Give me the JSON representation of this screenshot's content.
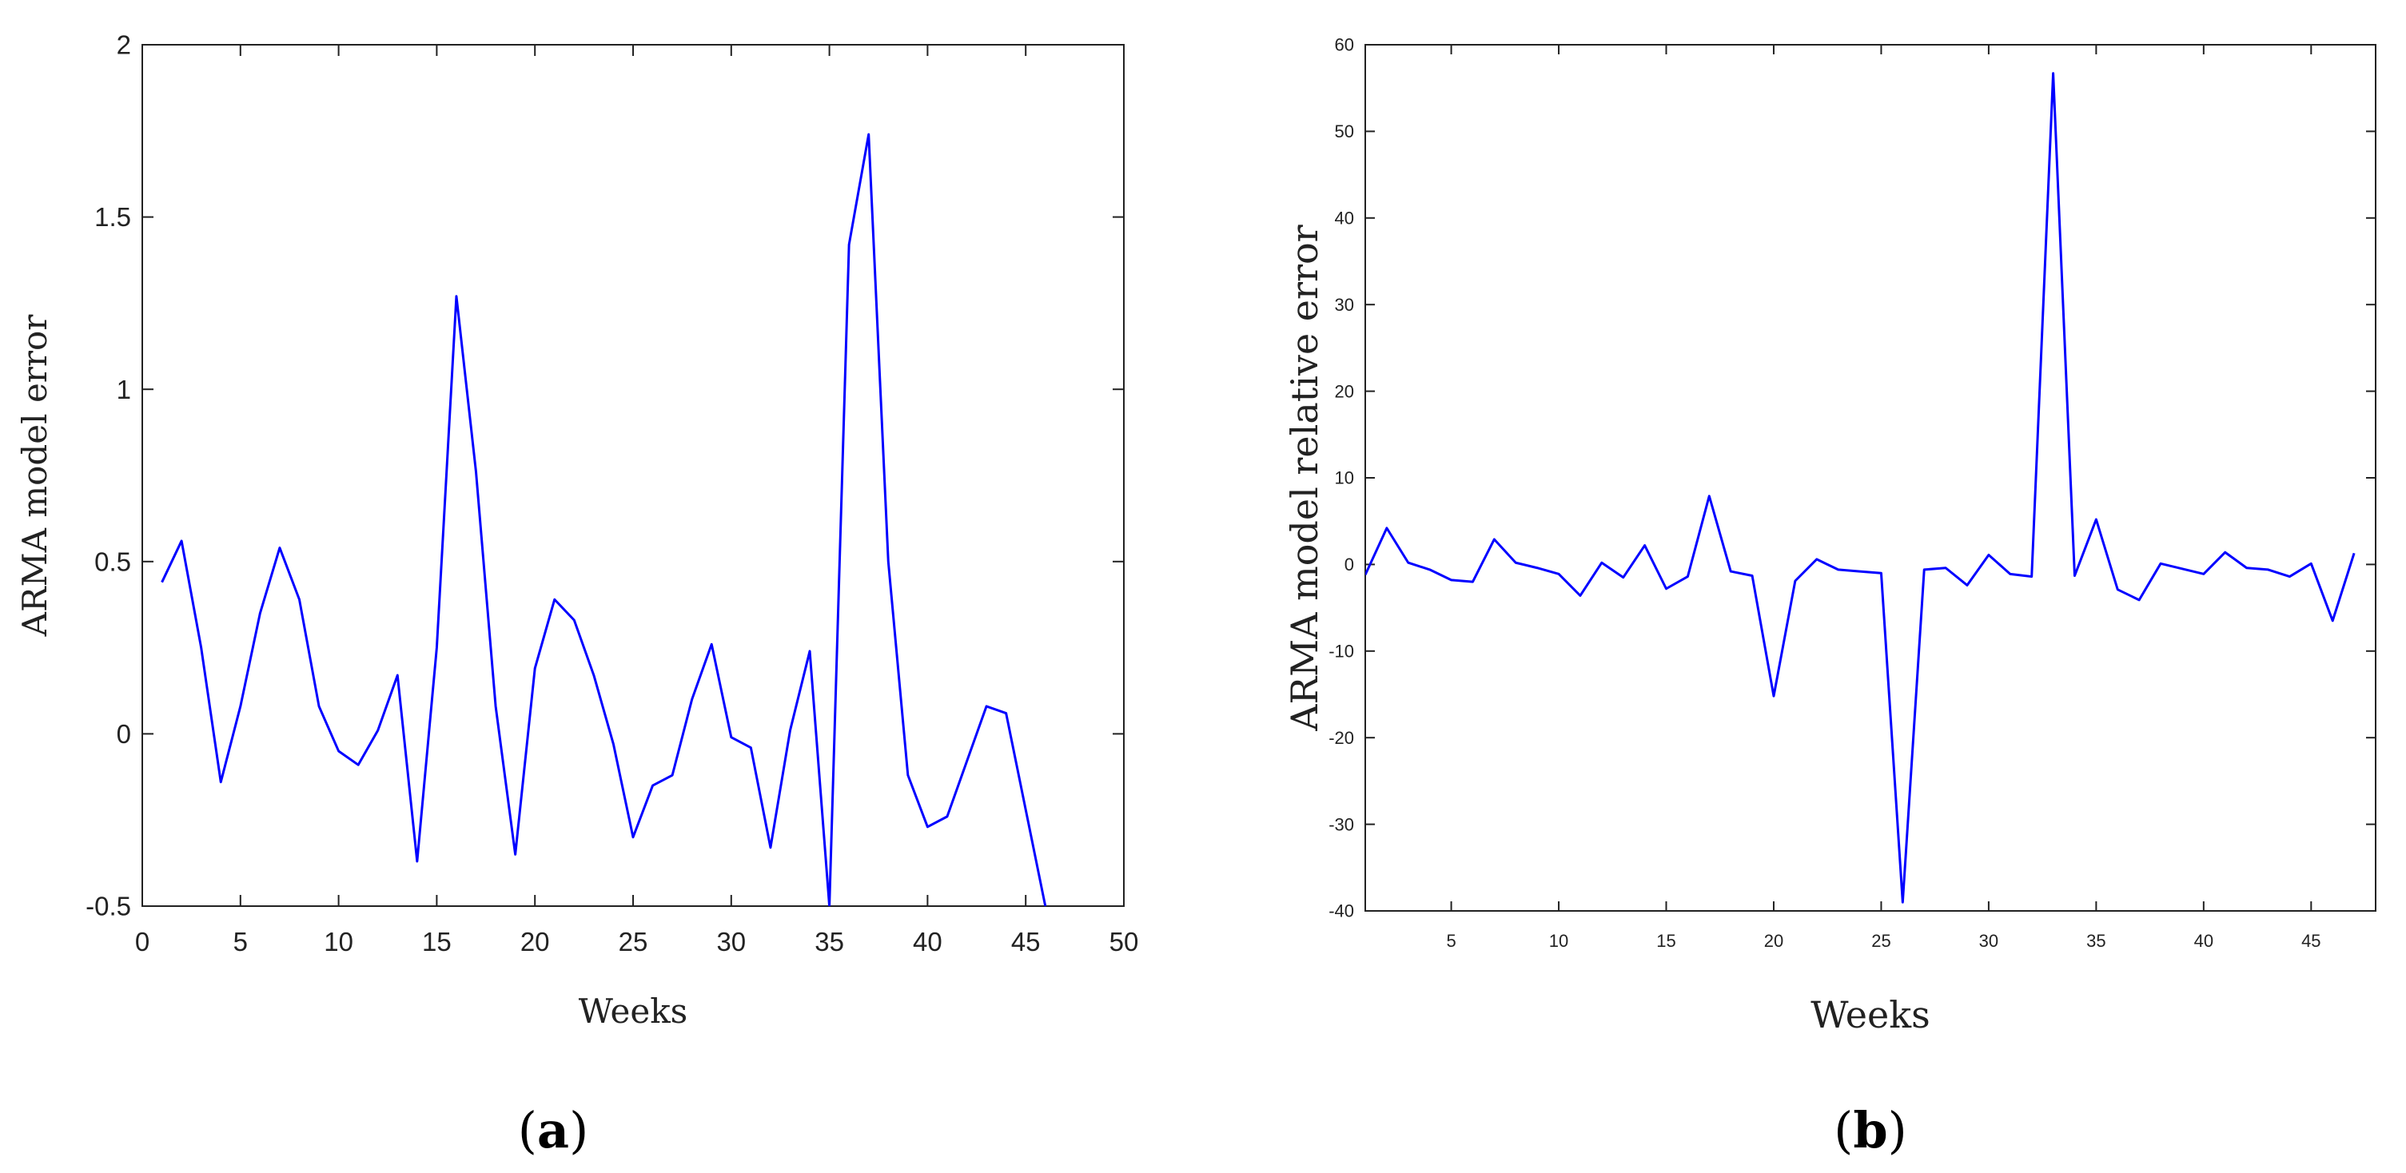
{
  "chart_data": [
    {
      "type": "line",
      "panel_label": "a",
      "xlabel": "Weeks",
      "ylabel": "ARMA model error",
      "xlim": [
        0,
        50
      ],
      "ylim": [
        -0.5,
        2
      ],
      "x_ticks": [
        "0",
        "5",
        "10",
        "15",
        "20",
        "25",
        "30",
        "35",
        "40",
        "45",
        "50"
      ],
      "y_ticks": [
        "-0.5",
        "0",
        "0.5",
        "1",
        "1.5",
        "2"
      ],
      "grid": false,
      "line_color": "#0000ff",
      "series": [
        {
          "x": [
            1,
            2,
            3,
            4,
            5,
            6,
            7,
            8,
            9,
            10,
            11,
            12,
            13,
            14,
            15,
            16,
            17,
            18,
            19,
            20,
            21,
            22,
            23,
            24,
            25,
            26,
            27,
            28,
            29,
            30,
            31,
            32,
            33,
            34,
            35,
            36,
            37,
            38,
            39,
            40,
            41,
            42,
            43,
            44,
            45,
            46
          ],
          "values": [
            0.44,
            0.56,
            0.25,
            -0.14,
            0.08,
            0.35,
            0.54,
            0.39,
            0.08,
            -0.05,
            -0.09,
            0.01,
            0.17,
            -0.37,
            0.25,
            1.27,
            0.76,
            0.08,
            -0.35,
            0.19,
            0.39,
            0.33,
            0.17,
            -0.03,
            -0.3,
            -0.15,
            -0.12,
            0.1,
            0.26,
            -0.01,
            -0.04,
            -0.33,
            0.01,
            0.24,
            -0.5,
            1.42,
            1.74,
            0.5,
            -0.12,
            -0.27,
            -0.24,
            -0.08,
            0.08,
            0.06,
            -0.22,
            -0.5
          ]
        }
      ]
    },
    {
      "type": "line",
      "panel_label": "b",
      "xlabel": "Weeks",
      "ylabel": "ARMA model relative error",
      "xlim": [
        1,
        48
      ],
      "ylim": [
        -40,
        60
      ],
      "x_ticks": [
        "5",
        "10",
        "15",
        "20",
        "25",
        "30",
        "35",
        "40",
        "45"
      ],
      "y_ticks": [
        "-40",
        "-30",
        "-20",
        "-10",
        "0",
        "10",
        "20",
        "30",
        "40",
        "50",
        "60"
      ],
      "grid": false,
      "line_color": "#0000ff",
      "series": [
        {
          "x": [
            1,
            2,
            3,
            4,
            5,
            6,
            7,
            8,
            9,
            10,
            11,
            12,
            13,
            14,
            15,
            16,
            17,
            18,
            19,
            20,
            21,
            22,
            23,
            24,
            25,
            26,
            27,
            28,
            29,
            30,
            31,
            32,
            33,
            34,
            35,
            36,
            37,
            38,
            39,
            40,
            41,
            42,
            43,
            44,
            45,
            46,
            47
          ],
          "values": [
            -1.2,
            4.2,
            0.2,
            -0.6,
            -1.8,
            -2.0,
            2.9,
            0.2,
            -0.4,
            -1.1,
            -3.6,
            0.2,
            -1.5,
            2.2,
            -2.8,
            -1.4,
            7.9,
            -0.8,
            -1.3,
            -15.2,
            -1.9,
            0.6,
            -0.6,
            -0.8,
            -1.0,
            -39.0,
            -0.6,
            -0.4,
            -2.4,
            1.1,
            -1.1,
            -1.4,
            56.7,
            -1.3,
            5.2,
            -2.9,
            -4.1,
            0.1,
            -0.5,
            -1.1,
            1.4,
            -0.4,
            -0.6,
            -1.4,
            0.1,
            -6.5,
            1.3
          ]
        }
      ]
    }
  ]
}
